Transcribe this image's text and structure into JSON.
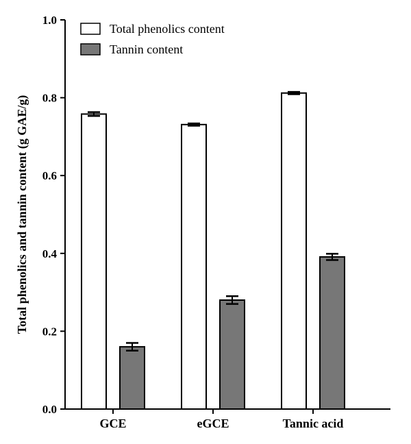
{
  "chart_data": {
    "type": "bar",
    "categories": [
      "GCE",
      "eGCE",
      "Tannic acid"
    ],
    "series": [
      {
        "name": "Total phenolics content",
        "values": [
          0.758,
          0.731,
          0.812
        ],
        "errors": [
          0.005,
          0.003,
          0.003
        ],
        "color": "#ffffff"
      },
      {
        "name": "Tannin content",
        "values": [
          0.16,
          0.28,
          0.391
        ],
        "errors": [
          0.01,
          0.01,
          0.008
        ],
        "color": "#777777"
      }
    ],
    "title": "",
    "xlabel": "",
    "ylabel": "Total phenolics and tannin content (g GAE/g)",
    "ylim": [
      0,
      1.0
    ],
    "yticks": [
      "0.0",
      "0.2",
      "0.4",
      "0.6",
      "0.8",
      "1.0"
    ],
    "grid": false,
    "legend_position": "top-left"
  }
}
